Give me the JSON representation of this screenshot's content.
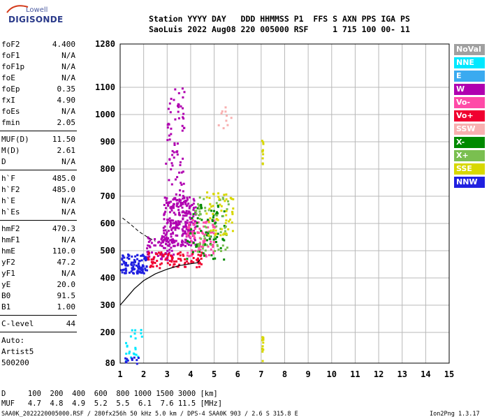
{
  "logo": {
    "top": "Lowell",
    "bottom": "DIGISONDE"
  },
  "header": {
    "line1": "Station YYYY DAY   DDD HHMMSS P1  FFS S AXN PPS IGA PS",
    "line2": "SaoLuis 2022 Aug08 220 005000 RSF     1 715 100 00- 11"
  },
  "params_group1": [
    {
      "label": "foF2",
      "value": "4.400"
    },
    {
      "label": "foF1",
      "value": "N/A"
    },
    {
      "label": "foF1p",
      "value": "N/A"
    },
    {
      "label": "foE",
      "value": "N/A"
    },
    {
      "label": "foEp",
      "value": "0.35"
    },
    {
      "label": "fxI",
      "value": "4.90"
    },
    {
      "label": "foEs",
      "value": "N/A"
    },
    {
      "label": "fmin",
      "value": "2.05"
    }
  ],
  "params_group2": [
    {
      "label": "MUF(D)",
      "value": "11.50"
    },
    {
      "label": "M(D)",
      "value": "2.61"
    },
    {
      "label": "D",
      "value": "N/A"
    }
  ],
  "params_group3": [
    {
      "label": "h`F",
      "value": "485.0"
    },
    {
      "label": "h`F2",
      "value": "485.0"
    },
    {
      "label": "h`E",
      "value": "N/A"
    },
    {
      "label": "h`Es",
      "value": "N/A"
    }
  ],
  "params_group4": [
    {
      "label": "hmF2",
      "value": "470.3"
    },
    {
      "label": "hmF1",
      "value": "N/A"
    },
    {
      "label": "hmE",
      "value": "110.0"
    },
    {
      "label": "yF2",
      "value": "47.2"
    },
    {
      "label": "yF1",
      "value": "N/A"
    },
    {
      "label": "yE",
      "value": "20.0"
    },
    {
      "label": "B0",
      "value": "91.5"
    },
    {
      "label": "B1",
      "value": "1.00"
    }
  ],
  "clevel": {
    "label": "C-level",
    "value": "44"
  },
  "auto": {
    "line1": "Auto:",
    "line2": "Artist5",
    "line3": "500200"
  },
  "legend": [
    {
      "label": "NoVal",
      "color": "#a0a0a0"
    },
    {
      "label": "NNE",
      "color": "#00e8ff"
    },
    {
      "label": "E",
      "color": "#3aaaf0"
    },
    {
      "label": "W",
      "color": "#b000b0"
    },
    {
      "label": "Vo-",
      "color": "#ff4aa8"
    },
    {
      "label": "Vo+",
      "color": "#f00030"
    },
    {
      "label": "SSW",
      "color": "#f8b0b0"
    },
    {
      "label": "X-",
      "color": "#008a00"
    },
    {
      "label": "X+",
      "color": "#7abf50"
    },
    {
      "label": "SSE",
      "color": "#d8d800"
    },
    {
      "label": "NNW",
      "color": "#2020e0"
    }
  ],
  "footer": {
    "line1": "D     100  200  400  600  800 1000 1500 3000 [km]",
    "line2": "MUF   4.7  4.8  4.9  5.2  5.5  6.1  7.6 11.5 [MHz]",
    "line3": "SAA0K_2022220005000.RSF / 280fx256h 50 kHz 5.0 km / DPS-4 SAA0K 903 / 2.6 S 315.8 E",
    "version": "Ion2Png 1.3.17"
  },
  "chart_data": {
    "type": "scatter",
    "xlim": [
      1,
      15
    ],
    "ylim": [
      80,
      1280
    ],
    "x_ticks": [
      1,
      2,
      3,
      4,
      5,
      6,
      7,
      8,
      9,
      10,
      11,
      12,
      13,
      14,
      15
    ],
    "y_ticks": [
      80,
      200,
      300,
      400,
      500,
      600,
      700,
      800,
      900,
      1000,
      1100,
      1280
    ],
    "grid": true,
    "profile_curve": [
      [
        1.0,
        300
      ],
      [
        1.3,
        330
      ],
      [
        1.6,
        360
      ],
      [
        2.0,
        390
      ],
      [
        2.5,
        415
      ],
      [
        3.0,
        432
      ],
      [
        3.5,
        445
      ],
      [
        4.0,
        452
      ],
      [
        4.3,
        456
      ],
      [
        4.4,
        468
      ]
    ],
    "profile_upper_dashed": [
      [
        1.1,
        620
      ],
      [
        1.4,
        600
      ],
      [
        1.8,
        570
      ],
      [
        2.2,
        548
      ],
      [
        2.5,
        535
      ]
    ],
    "echo_regions": [
      {
        "color": "#b000b0",
        "x": [
          2.8,
          4.2
        ],
        "y": [
          520,
          700
        ],
        "n": 260
      },
      {
        "color": "#b000b0",
        "x": [
          2.9,
          3.7
        ],
        "y": [
          700,
          1100
        ],
        "n": 70
      },
      {
        "color": "#b000b0",
        "x": [
          2.1,
          3.3
        ],
        "y": [
          470,
          560
        ],
        "n": 70
      },
      {
        "color": "#ff4aa8",
        "x": [
          3.8,
          5.0
        ],
        "y": [
          480,
          620
        ],
        "n": 90
      },
      {
        "color": "#f00030",
        "x": [
          2.1,
          4.5
        ],
        "y": [
          440,
          500
        ],
        "n": 90
      },
      {
        "color": "#2020e0",
        "x": [
          1.0,
          2.1
        ],
        "y": [
          420,
          490
        ],
        "n": 110
      },
      {
        "color": "#008a00",
        "x": [
          3.8,
          5.4
        ],
        "y": [
          470,
          690
        ],
        "n": 70
      },
      {
        "color": "#7abf50",
        "x": [
          4.1,
          5.6
        ],
        "y": [
          500,
          700
        ],
        "n": 60
      },
      {
        "color": "#d8d800",
        "x": [
          4.6,
          5.8
        ],
        "y": [
          560,
          720
        ],
        "n": 55
      },
      {
        "color": "#f8b0b0",
        "x": [
          5.1,
          5.8
        ],
        "y": [
          950,
          1040
        ],
        "n": 10
      },
      {
        "color": "#00e8ff",
        "x": [
          1.2,
          1.9
        ],
        "y": [
          80,
          220
        ],
        "n": 22
      },
      {
        "color": "#2020e0",
        "x": [
          1.1,
          1.8
        ],
        "y": [
          80,
          110
        ],
        "n": 12
      },
      {
        "color": "#d8d800",
        "x": [
          7.0,
          7.05
        ],
        "y": [
          80,
          200
        ],
        "n": 14
      },
      {
        "color": "#d8d800",
        "x": [
          7.0,
          7.05
        ],
        "y": [
          820,
          920
        ],
        "n": 10
      }
    ]
  }
}
